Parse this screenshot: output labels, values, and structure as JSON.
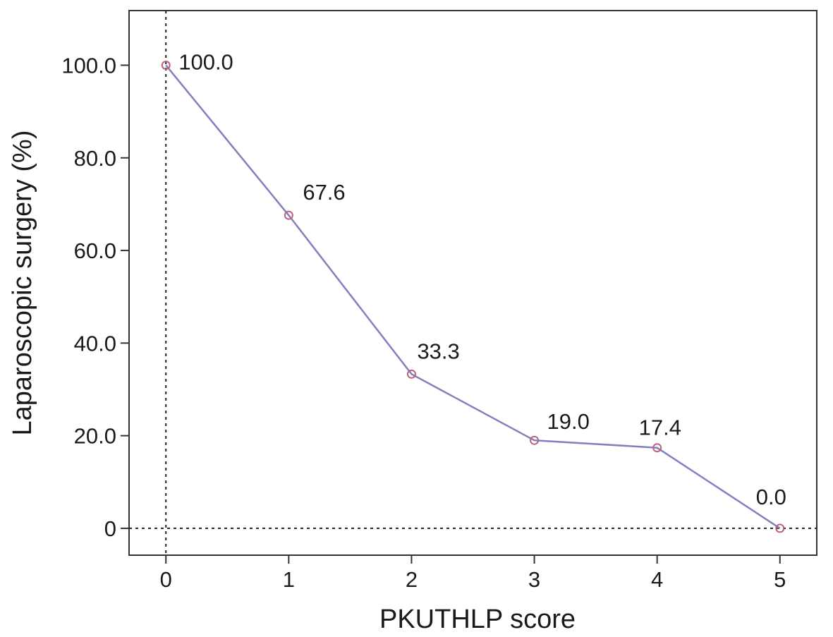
{
  "chart_data": {
    "type": "line",
    "xlabel": "PKUTHLP score",
    "ylabel": "Laparoscopic surgery (%)",
    "x": [
      0,
      1,
      2,
      3,
      4,
      5
    ],
    "series": [
      {
        "values": [
          100.0,
          67.6,
          33.3,
          19.0,
          17.4,
          0.0
        ],
        "data_labels": [
          "100.0",
          "67.6",
          "33.3",
          "19.0",
          "17.4",
          "0.0"
        ]
      }
    ],
    "xticks": [
      "0",
      "1",
      "2",
      "3",
      "4",
      "5"
    ],
    "yticks": [
      {
        "value": 0,
        "label": "0"
      },
      {
        "value": 20,
        "label": "20.0"
      },
      {
        "value": 40,
        "label": "40.0"
      },
      {
        "value": 60,
        "label": "60.0"
      },
      {
        "value": 80,
        "label": "80.0"
      },
      {
        "value": 100,
        "label": "100.0"
      }
    ],
    "xlim": [
      -0.3,
      5.3
    ],
    "ylim": [
      -5.8,
      111.8
    ],
    "reference_lines": [
      {
        "axis": "x",
        "value": 0,
        "style": "dotted"
      },
      {
        "axis": "y",
        "value": 0,
        "style": "dotted"
      }
    ],
    "grid": false,
    "legend": "none",
    "colors": {
      "line": "#8080c0",
      "marker": "#c0607a",
      "axis": "#333333",
      "reference": "#222222"
    }
  }
}
